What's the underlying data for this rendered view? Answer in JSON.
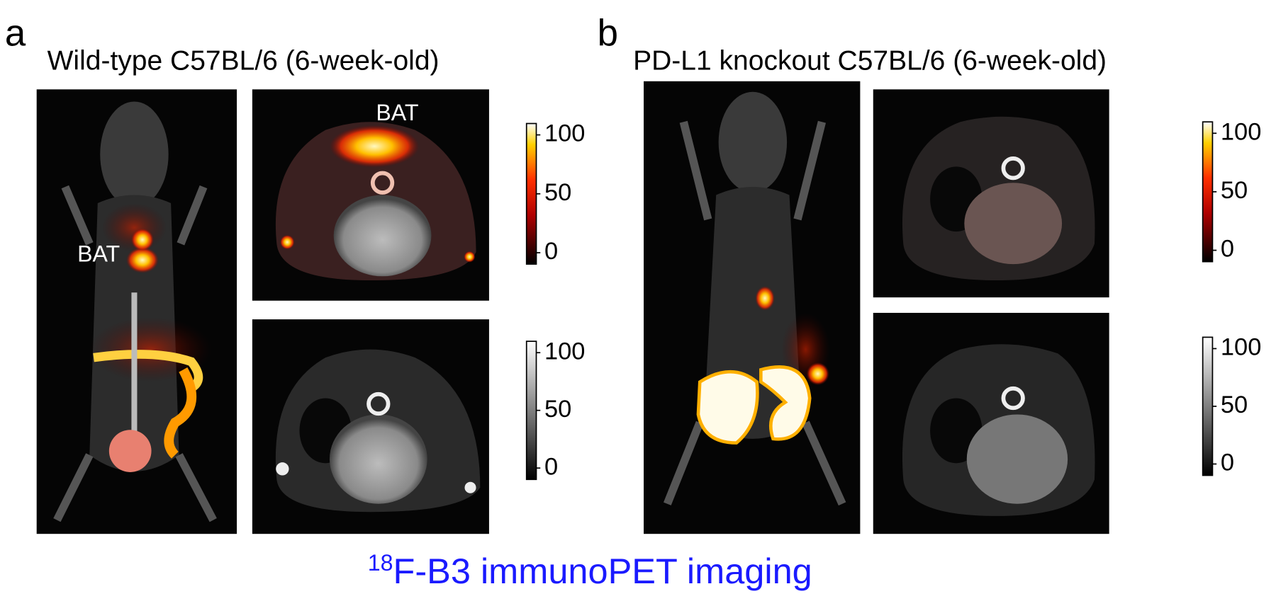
{
  "panels": [
    {
      "letter": "a",
      "title": "Wild-type C57BL/6 (6-week-old)",
      "annotations": [
        "BAT",
        "BAT"
      ],
      "colorbars": [
        {
          "colormap": "hot",
          "ticks": [
            "100",
            "50",
            "0"
          ]
        },
        {
          "colormap": "gray",
          "ticks": [
            "100",
            "50",
            "0"
          ]
        }
      ]
    },
    {
      "letter": "b",
      "title": "PD-L1 knockout C57BL/6 (6-week-old)",
      "colorbars": [
        {
          "colormap": "hot",
          "ticks": [
            "100",
            "50",
            "0"
          ]
        },
        {
          "colormap": "gray",
          "ticks": [
            "100",
            "50",
            "0"
          ]
        }
      ]
    }
  ],
  "caption": {
    "superscript": "18",
    "text": "F-B3 immunoPET imaging"
  }
}
